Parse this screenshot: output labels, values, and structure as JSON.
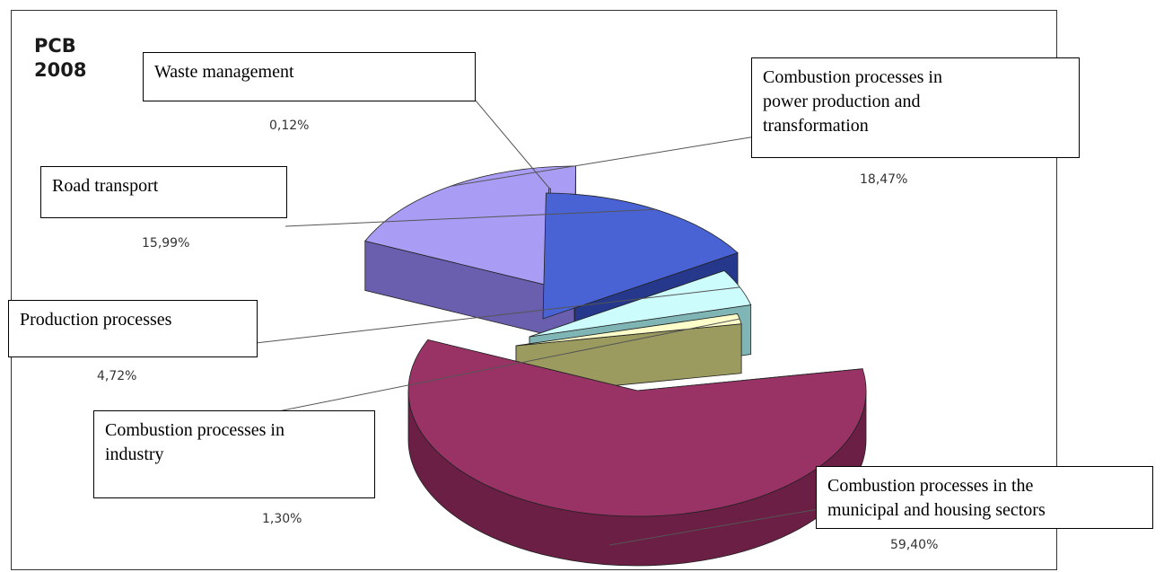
{
  "chart_data": {
    "type": "pie",
    "title_lines": [
      "PCB",
      "2008"
    ],
    "slices": [
      {
        "label_lines": [
          "Combustion processes in the",
          "municipal and housing sectors"
        ],
        "value_label": "59,40%",
        "value": 59.4,
        "color": "#993366",
        "side": "#6b1f44"
      },
      {
        "label_lines": [
          "Combustion processes in",
          "power production and",
          "transformation"
        ],
        "value_label": "18,47%",
        "value": 18.47,
        "color": "#a99cf5",
        "side": "#6a5fae"
      },
      {
        "label_lines": [
          "Waste management"
        ],
        "value_label": "0,12%",
        "value": 0.12,
        "color": "#9a9aa6",
        "side": "#5d5d68"
      },
      {
        "label_lines": [
          "Road transport"
        ],
        "value_label": "15,99%",
        "value": 15.99,
        "color": "#4a63d4",
        "side": "#26388c"
      },
      {
        "label_lines": [
          "Production processes"
        ],
        "value_label": "4,72%",
        "value": 4.72,
        "color": "#ccfcfc",
        "side": "#80b5b5"
      },
      {
        "label_lines": [
          "Combustion processes in",
          "industry"
        ],
        "value_label": "1,30%",
        "value": 1.3,
        "color": "#ffffcc",
        "side": "#9b9b60"
      }
    ]
  },
  "colors": {
    "frame_border": "#333333",
    "leader_line": "#555555"
  }
}
